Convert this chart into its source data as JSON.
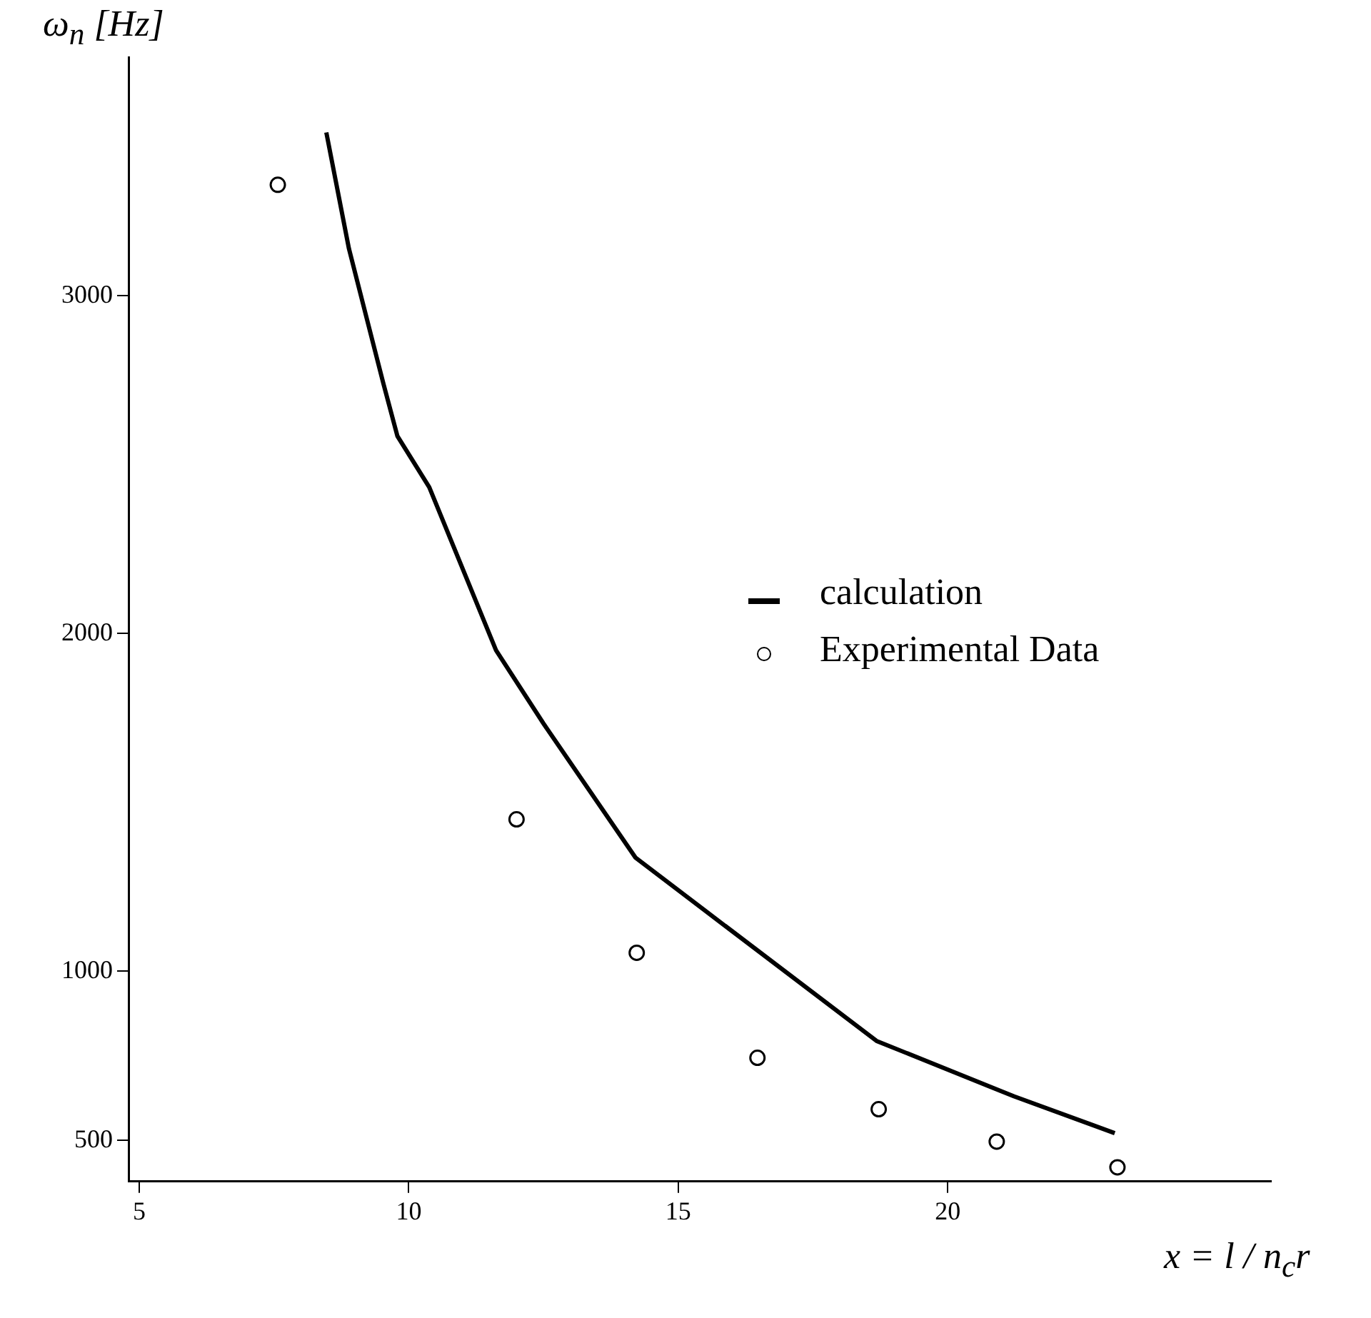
{
  "chart_data": {
    "type": "scatter",
    "xlabel": "x = l / n$_{c}$r",
    "ylabel": "ω$_{n}$ [Hz]",
    "xlim": [
      4.8,
      26.0
    ],
    "ylim": [
      378,
      3706
    ],
    "xticks": [
      5,
      10,
      15,
      20
    ],
    "yticks": [
      500,
      1000,
      2000,
      3000
    ],
    "grid": false,
    "legend": "right",
    "marker": "circle",
    "series": [
      {
        "name": "calculation",
        "type": "line",
        "marker": "none",
        "color": "#000000",
        "x": [
          8.47,
          8.89,
          9.53,
          9.79,
          10.38,
          11.62,
          12.51,
          14.21,
          18.68,
          21.23,
          23.1
        ],
        "values": [
          3483,
          3139,
          2739,
          2584,
          2433,
          1950,
          1731,
          1336,
          794,
          630,
          521
        ]
      },
      {
        "name": "Experimental Data",
        "type": "scatter",
        "color": "#000000",
        "x": [
          7.57,
          12.0,
          14.23,
          16.47,
          18.72,
          20.91,
          23.15
        ],
        "values": [
          3328,
          1450,
          1055,
          744,
          592,
          496,
          420
        ]
      }
    ]
  }
}
